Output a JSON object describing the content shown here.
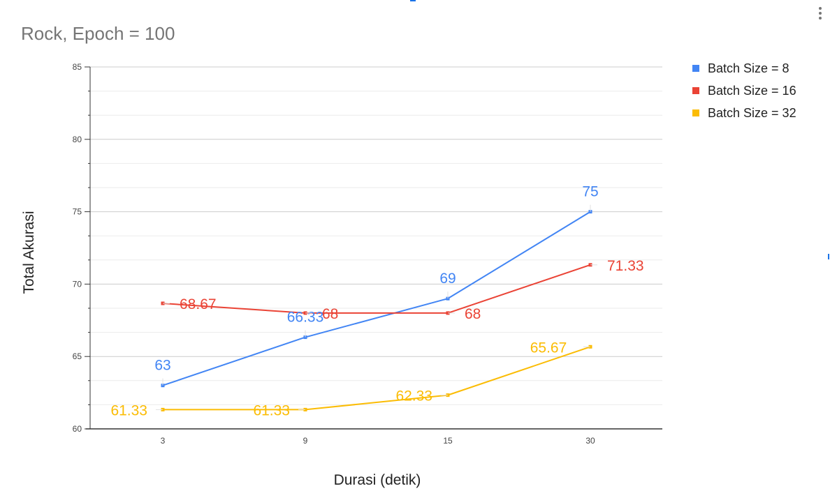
{
  "chart_data": {
    "type": "line",
    "title": "Rock, Epoch = 100",
    "xlabel": "Durasi (detik)",
    "ylabel": "Total Akurasi",
    "categories": [
      "3",
      "9",
      "15",
      "30"
    ],
    "ylim": [
      60,
      85
    ],
    "yticks": [
      60,
      65,
      70,
      75,
      80,
      85
    ],
    "grid": true,
    "legend": "right",
    "series": [
      {
        "name": "Batch Size = 8",
        "color": "#4285f4",
        "values": [
          63,
          66.33,
          69,
          75
        ],
        "labels": [
          "63",
          "66.33",
          "69",
          "75"
        ]
      },
      {
        "name": "Batch Size = 16",
        "color": "#ea4335",
        "values": [
          68.67,
          68,
          68,
          71.33
        ],
        "labels": [
          "68.67",
          "68",
          "68",
          "71.33"
        ]
      },
      {
        "name": "Batch Size = 32",
        "color": "#fbbc04",
        "values": [
          61.33,
          61.33,
          62.33,
          65.67
        ],
        "labels": [
          "61.33",
          "61.33",
          "62.33",
          "65.67"
        ]
      }
    ]
  },
  "ui": {
    "menu_icon": "more-vert-icon"
  }
}
